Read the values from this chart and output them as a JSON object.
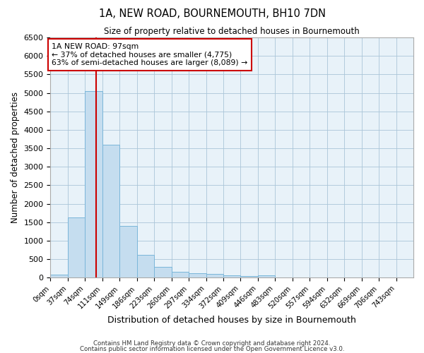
{
  "title": "1A, NEW ROAD, BOURNEMOUTH, BH10 7DN",
  "subtitle": "Size of property relative to detached houses in Bournemouth",
  "xlabel": "Distribution of detached houses by size in Bournemouth",
  "ylabel": "Number of detached properties",
  "footnote1": "Contains HM Land Registry data © Crown copyright and database right 2024.",
  "footnote2": "Contains public sector information licensed under the Open Government Licence v3.0.",
  "bin_labels": [
    "0sqm",
    "37sqm",
    "74sqm",
    "111sqm",
    "149sqm",
    "186sqm",
    "223sqm",
    "260sqm",
    "297sqm",
    "334sqm",
    "372sqm",
    "409sqm",
    "446sqm",
    "483sqm",
    "520sqm",
    "557sqm",
    "594sqm",
    "632sqm",
    "669sqm",
    "706sqm",
    "743sqm"
  ],
  "bar_values": [
    75,
    1625,
    5050,
    3600,
    1400,
    620,
    300,
    160,
    120,
    100,
    55,
    45,
    55,
    0,
    0,
    0,
    0,
    0,
    0,
    0,
    0
  ],
  "bar_color": "#c5ddef",
  "bar_edge_color": "#7ab6d9",
  "grid_color": "#aac5d8",
  "background_color": "#e8f2f9",
  "vline_x": 97,
  "vline_color": "#cc0000",
  "annotation_text": "1A NEW ROAD: 97sqm\n← 37% of detached houses are smaller (4,775)\n63% of semi-detached houses are larger (8,089) →",
  "annotation_box_color": "#cc0000",
  "ylim": [
    0,
    6500
  ],
  "yticks": [
    0,
    500,
    1000,
    1500,
    2000,
    2500,
    3000,
    3500,
    4000,
    4500,
    5000,
    5500,
    6000,
    6500
  ],
  "bin_width": 37,
  "n_bins": 21
}
